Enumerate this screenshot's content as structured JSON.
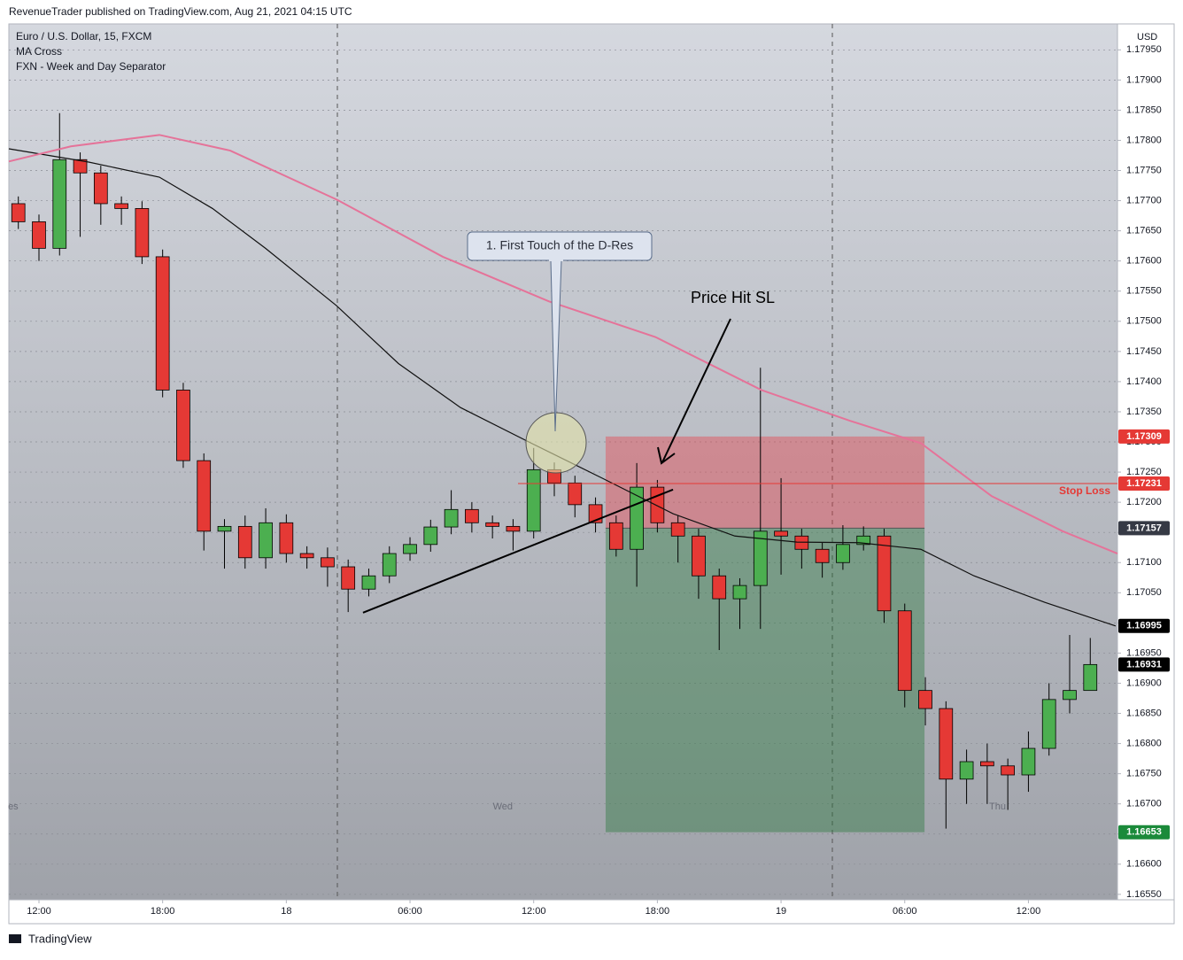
{
  "header": {
    "attribution": "RevenueTrader published on TradingView.com, Aug 21, 2021 04:15 UTC",
    "footer": "TradingView"
  },
  "chart_data": {
    "type": "candlestick",
    "title": "Euro / U.S. Dollar, 15, FXCM",
    "indicators": [
      "MA Cross",
      "FXN - Week and Day Separator"
    ],
    "axis_unit": "USD",
    "up_color": "#4caf50",
    "down_color": "#e53935",
    "x": [
      -1,
      0,
      1,
      2,
      3,
      4,
      5,
      6,
      7,
      8,
      9,
      10,
      11,
      12,
      13,
      14,
      15,
      16,
      17,
      18,
      19,
      20,
      21,
      22,
      23,
      24,
      25,
      26,
      27,
      28,
      29,
      30,
      31,
      32,
      33,
      34,
      35,
      36,
      37,
      38,
      39,
      40,
      41,
      42,
      43,
      44,
      45,
      46,
      47,
      48,
      49,
      50,
      51
    ],
    "open": [
      1.17695,
      1.17665,
      1.17621,
      1.17768,
      1.17746,
      1.17695,
      1.17687,
      1.17607,
      1.17386,
      1.17269,
      1.17152,
      1.1716,
      1.17108,
      1.17166,
      1.17115,
      1.17108,
      1.17093,
      1.17056,
      1.17078,
      1.17115,
      1.1713,
      1.17159,
      1.17188,
      1.17166,
      1.1716,
      1.17152,
      1.17254,
      1.17232,
      1.17196,
      1.17166,
      1.17122,
      1.17225,
      1.17166,
      1.17144,
      1.17078,
      1.1704,
      1.17062,
      1.17152,
      1.17144,
      1.17122,
      1.171,
      1.1713,
      1.17144,
      1.1702,
      1.16888,
      1.16858,
      1.16741,
      1.1677,
      1.16763,
      1.16748,
      1.16792,
      1.16873,
      1.16888
    ],
    "high": [
      1.17707,
      1.17677,
      1.17845,
      1.1778,
      1.17758,
      1.17707,
      1.17699,
      1.17619,
      1.17398,
      1.17281,
      1.17172,
      1.17178,
      1.1719,
      1.1718,
      1.17127,
      1.17125,
      1.17105,
      1.1709,
      1.17127,
      1.17142,
      1.17171,
      1.1722,
      1.172,
      1.17178,
      1.17172,
      1.1729,
      1.17266,
      1.17244,
      1.17208,
      1.17178,
      1.17265,
      1.17237,
      1.17178,
      1.17156,
      1.1709,
      1.17074,
      1.17423,
      1.1724,
      1.17156,
      1.17134,
      1.17162,
      1.1716,
      1.17156,
      1.17032,
      1.1691,
      1.1687,
      1.1679,
      1.168,
      1.16775,
      1.1682,
      1.169,
      1.1698,
      1.16975
    ],
    "low": [
      1.17653,
      1.176,
      1.17609,
      1.1764,
      1.1766,
      1.1766,
      1.17595,
      1.17374,
      1.17257,
      1.1712,
      1.1709,
      1.1709,
      1.1709,
      1.171,
      1.1709,
      1.1706,
      1.17018,
      1.17044,
      1.17066,
      1.17103,
      1.17118,
      1.17147,
      1.1715,
      1.1714,
      1.1712,
      1.1714,
      1.1721,
      1.17175,
      1.1715,
      1.1711,
      1.1706,
      1.1715,
      1.171,
      1.1704,
      1.16955,
      1.1699,
      1.1699,
      1.1708,
      1.1709,
      1.17075,
      1.17088,
      1.1712,
      1.17,
      1.1686,
      1.1683,
      1.16659,
      1.167,
      1.167,
      1.1669,
      1.1672,
      1.1678,
      1.1685,
      1.16895
    ],
    "close": [
      1.17665,
      1.17621,
      1.17768,
      1.17746,
      1.17695,
      1.17687,
      1.17607,
      1.17386,
      1.17269,
      1.17152,
      1.1716,
      1.17108,
      1.17166,
      1.17115,
      1.17108,
      1.17093,
      1.17056,
      1.17078,
      1.17115,
      1.1713,
      1.17159,
      1.17188,
      1.17166,
      1.1716,
      1.17152,
      1.17254,
      1.17232,
      1.17196,
      1.17166,
      1.17122,
      1.17225,
      1.17166,
      1.17144,
      1.17078,
      1.1704,
      1.17062,
      1.17152,
      1.17144,
      1.17122,
      1.171,
      1.1713,
      1.17144,
      1.1702,
      1.16888,
      1.16858,
      1.16741,
      1.1677,
      1.16763,
      1.16748,
      1.16792,
      1.16873,
      1.16888,
      1.16931
    ],
    "moving_averages": [
      {
        "color": "#111111",
        "x": [
          -1.46,
          2.41,
          5.84,
          8.42,
          10.99,
          14.43,
          17.44,
          20.45,
          23.88,
          27.32,
          30.76,
          33.76,
          36.77,
          39.78,
          42.78,
          45.36,
          48.8,
          52.23
        ],
        "values": [
          1.17786,
          1.17764,
          1.17739,
          1.17687,
          1.17621,
          1.17526,
          1.1743,
          1.17357,
          1.17298,
          1.1724,
          1.17181,
          1.17144,
          1.17134,
          1.17133,
          1.17122,
          1.17078,
          1.17034,
          1.16995
        ]
      },
      {
        "color": "#e57399",
        "x": [
          -1.46,
          1.55,
          5.84,
          9.28,
          14.43,
          19.59,
          24.74,
          29.9,
          35.05,
          39.35,
          42.78,
          46.22,
          49.66,
          52.32
        ],
        "values": [
          1.17765,
          1.1779,
          1.17809,
          1.17783,
          1.17702,
          1.17607,
          1.17533,
          1.17474,
          1.17386,
          1.17335,
          1.17298,
          1.1721,
          1.17152,
          1.17115
        ]
      }
    ],
    "trendline": {
      "x": [
        15.72,
        30.76
      ],
      "values": [
        1.17017,
        1.17221
      ]
    },
    "position": {
      "x": [
        27.49,
        42.96
      ],
      "stop": 1.17309,
      "entry": 1.17157,
      "target": 1.16653
    },
    "stop_loss": {
      "label": "Stop Loss",
      "value": 1.17231,
      "x": 23.24
    },
    "price_labels": [
      {
        "value": 1.17309,
        "color": "#e53935"
      },
      {
        "value": 1.17231,
        "color": "#e53935"
      },
      {
        "value": 1.17157,
        "color": "#363a45"
      },
      {
        "value": 1.16995,
        "color": "#000000"
      },
      {
        "value": 1.16931,
        "color": "#000000"
      },
      {
        "value": 1.16653,
        "color": "#1b8a3a"
      }
    ],
    "annotations": [
      "1. First Touch of the D-Res",
      "Price Hit SL"
    ],
    "day_labels": [
      {
        "value": -1.25,
        "label": "es"
      },
      {
        "value": 22.5,
        "label": "Wed"
      },
      {
        "value": 46.5,
        "label": "Thu"
      }
    ],
    "xlim": [
      -1.46,
      52.32
    ],
    "xticks": [
      {
        "value": 0,
        "label": "12:00"
      },
      {
        "value": 6,
        "label": "18:00"
      },
      {
        "value": 12,
        "label": "18"
      },
      {
        "value": 18,
        "label": "06:00"
      },
      {
        "value": 24,
        "label": "12:00"
      },
      {
        "value": 30,
        "label": "18:00"
      },
      {
        "value": 36,
        "label": "19"
      },
      {
        "value": 42,
        "label": "06:00"
      },
      {
        "value": 48,
        "label": "12:00"
      }
    ],
    "ylim": [
      1.16541,
      1.17993
    ],
    "yticks": [
      {
        "value": 1.1655,
        "label": "1.16550"
      },
      {
        "value": 1.166,
        "label": "1.16600"
      },
      {
        "value": 1.1665,
        "label": "1.16650"
      },
      {
        "value": 1.167,
        "label": "1.16700"
      },
      {
        "value": 1.1675,
        "label": "1.16750"
      },
      {
        "value": 1.168,
        "label": "1.16800"
      },
      {
        "value": 1.1685,
        "label": "1.16850"
      },
      {
        "value": 1.169,
        "label": "1.16900"
      },
      {
        "value": 1.1695,
        "label": "1.16950"
      },
      {
        "value": 1.17,
        "label": "1.17000"
      },
      {
        "value": 1.1705,
        "label": "1.17050"
      },
      {
        "value": 1.171,
        "label": "1.17100"
      },
      {
        "value": 1.1715,
        "label": "1.17150"
      },
      {
        "value": 1.172,
        "label": "1.17200"
      },
      {
        "value": 1.1725,
        "label": "1.17250"
      },
      {
        "value": 1.173,
        "label": "1.17300"
      },
      {
        "value": 1.1735,
        "label": "1.17350"
      },
      {
        "value": 1.174,
        "label": "1.17400"
      },
      {
        "value": 1.1745,
        "label": "1.17450"
      },
      {
        "value": 1.175,
        "label": "1.17500"
      },
      {
        "value": 1.1755,
        "label": "1.17550"
      },
      {
        "value": 1.176,
        "label": "1.17600"
      },
      {
        "value": 1.1765,
        "label": "1.17650"
      },
      {
        "value": 1.177,
        "label": "1.17700"
      },
      {
        "value": 1.1775,
        "label": "1.17750"
      },
      {
        "value": 1.178,
        "label": "1.17800"
      },
      {
        "value": 1.1785,
        "label": "1.17850"
      },
      {
        "value": 1.179,
        "label": "1.17900"
      },
      {
        "value": 1.1795,
        "label": "1.17950"
      }
    ],
    "grid": true
  }
}
